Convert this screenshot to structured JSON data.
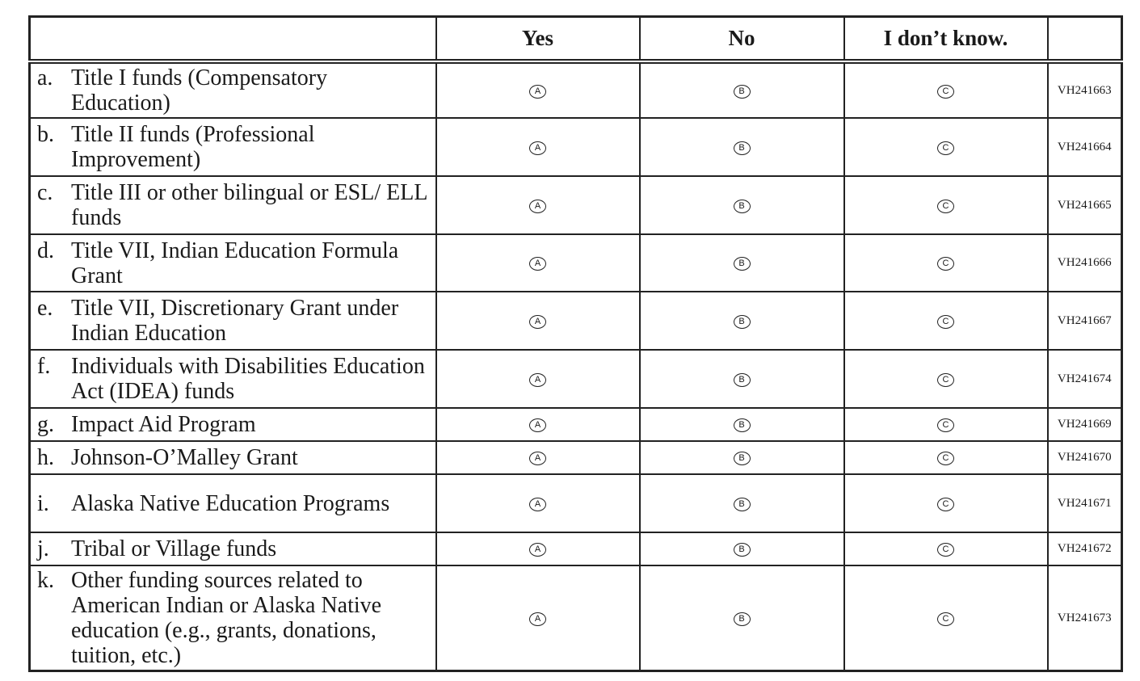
{
  "headers": {
    "item": "",
    "yes": "Yes",
    "no": "No",
    "dont_know": "I don’t know.",
    "code": ""
  },
  "bubbles": {
    "yes": "A",
    "no": "B",
    "dont_know": "C"
  },
  "rows": [
    {
      "letter": "a.",
      "label": "Title I funds (Compensatory Education)",
      "code": "VH241663"
    },
    {
      "letter": "b.",
      "label": "Title II funds (Professional Improvement)",
      "code": "VH241664"
    },
    {
      "letter": "c.",
      "label": "Title III or other bilingual or ESL/ ELL funds",
      "code": "VH241665"
    },
    {
      "letter": "d.",
      "label": "Title VII, Indian Education Formula Grant",
      "code": "VH241666"
    },
    {
      "letter": "e.",
      "label": "Title VII, Discretionary Grant under Indian Education",
      "code": "VH241667"
    },
    {
      "letter": "f.",
      "label": "Individuals with Disabilities Education Act (IDEA) funds",
      "code": "VH241674"
    },
    {
      "letter": "g.",
      "label": "Impact Aid Program",
      "code": "VH241669"
    },
    {
      "letter": "h.",
      "label": "Johnson-O’Malley Grant",
      "code": "VH241670"
    },
    {
      "letter": "i.",
      "label": "Alaska Native Education Programs",
      "code": "VH241671"
    },
    {
      "letter": "j.",
      "label": "Tribal or Village funds",
      "code": "VH241672"
    },
    {
      "letter": "k.",
      "label": "Other funding sources related to American Indian or Alaska Native education (e.g., grants, donations, tuition, etc.)",
      "code": "VH241673"
    }
  ]
}
